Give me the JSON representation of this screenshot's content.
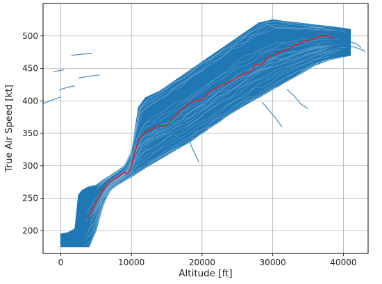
{
  "chart_data": {
    "type": "line",
    "title": "",
    "xlabel": "Altitude [ft]",
    "ylabel": "True Air Speed [kt]",
    "xlim": [
      -2500,
      43500
    ],
    "ylim": [
      165,
      550
    ],
    "xticks": [
      0,
      10000,
      20000,
      30000,
      40000
    ],
    "yticks": [
      200,
      250,
      300,
      350,
      400,
      450,
      500
    ],
    "grid": true,
    "legend": "none",
    "colors": {
      "ensemble": "#1f77b4",
      "mean": "#d62728",
      "grid": "#b0b0b0",
      "axes": "#000000"
    },
    "envelope": {
      "upper": [
        [
          0,
          195
        ],
        [
          1000,
          197
        ],
        [
          2000,
          203
        ],
        [
          2500,
          255
        ],
        [
          3000,
          262
        ],
        [
          4000,
          268
        ],
        [
          5000,
          270
        ],
        [
          6000,
          278
        ],
        [
          7000,
          285
        ],
        [
          8000,
          292
        ],
        [
          9000,
          300
        ],
        [
          10000,
          320
        ],
        [
          11000,
          390
        ],
        [
          12000,
          405
        ],
        [
          14000,
          415
        ],
        [
          16000,
          430
        ],
        [
          18000,
          445
        ],
        [
          20000,
          460
        ],
        [
          22000,
          475
        ],
        [
          24000,
          490
        ],
        [
          26000,
          505
        ],
        [
          28000,
          520
        ],
        [
          30000,
          525
        ],
        [
          32000,
          522
        ],
        [
          34000,
          520
        ],
        [
          36000,
          517
        ],
        [
          38000,
          515
        ],
        [
          40000,
          512
        ],
        [
          41000,
          510
        ]
      ],
      "lower": [
        [
          0,
          175
        ],
        [
          2000,
          175
        ],
        [
          4000,
          175
        ],
        [
          5000,
          200
        ],
        [
          6000,
          240
        ],
        [
          7000,
          262
        ],
        [
          8000,
          270
        ],
        [
          10000,
          283
        ],
        [
          12000,
          297
        ],
        [
          14000,
          310
        ],
        [
          16000,
          323
        ],
        [
          18000,
          335
        ],
        [
          20000,
          350
        ],
        [
          22000,
          365
        ],
        [
          24000,
          380
        ],
        [
          26000,
          393
        ],
        [
          28000,
          405
        ],
        [
          30000,
          418
        ],
        [
          32000,
          430
        ],
        [
          34000,
          442
        ],
        [
          36000,
          455
        ],
        [
          38000,
          463
        ],
        [
          40000,
          468
        ],
        [
          41000,
          470
        ]
      ]
    },
    "outliers": [
      [
        [
          -2500,
          396
        ],
        [
          -1000,
          402
        ],
        [
          0,
          406
        ]
      ],
      [
        [
          -200,
          417
        ],
        [
          1000,
          421
        ],
        [
          2000,
          423
        ]
      ],
      [
        [
          2500,
          435
        ],
        [
          4000,
          438
        ],
        [
          5500,
          440
        ]
      ],
      [
        [
          1500,
          470
        ],
        [
          3000,
          472
        ],
        [
          4500,
          473
        ]
      ],
      [
        [
          -1000,
          445
        ],
        [
          500,
          448
        ]
      ],
      [
        [
          17000,
          375
        ],
        [
          17500,
          360
        ],
        [
          18000,
          345
        ],
        [
          18500,
          330
        ],
        [
          19000,
          318
        ],
        [
          19600,
          305
        ]
      ],
      [
        [
          15500,
          357
        ],
        [
          16500,
          350
        ],
        [
          17500,
          343
        ]
      ],
      [
        [
          28500,
          398
        ],
        [
          29500,
          385
        ],
        [
          30500,
          372
        ],
        [
          31300,
          360
        ]
      ],
      [
        [
          32000,
          418
        ],
        [
          33000,
          408
        ],
        [
          34000,
          395
        ],
        [
          35000,
          388
        ]
      ],
      [
        [
          39000,
          500
        ],
        [
          40500,
          492
        ],
        [
          41800,
          488
        ],
        [
          42500,
          482
        ]
      ],
      [
        [
          40000,
          485
        ],
        [
          41500,
          483
        ],
        [
          42800,
          478
        ],
        [
          43100,
          475
        ]
      ]
    ],
    "series": [
      {
        "values": [
          [
            4000,
            220
          ],
          [
            5000,
            245
          ],
          [
            6000,
            263
          ],
          [
            7000,
            276
          ],
          [
            8000,
            282
          ],
          [
            9000,
            290
          ],
          [
            9500,
            288
          ],
          [
            10000,
            300
          ],
          [
            10500,
            320
          ],
          [
            11000,
            340
          ],
          [
            12000,
            352
          ],
          [
            13000,
            357
          ],
          [
            14000,
            362
          ],
          [
            15000,
            362
          ],
          [
            16000,
            374
          ],
          [
            17000,
            385
          ],
          [
            18000,
            395
          ],
          [
            19000,
            400
          ],
          [
            20000,
            402
          ],
          [
            21000,
            413
          ],
          [
            22000,
            420
          ],
          [
            23000,
            425
          ],
          [
            24000,
            430
          ],
          [
            25000,
            436
          ],
          [
            26000,
            442
          ],
          [
            27000,
            446
          ],
          [
            27500,
            455
          ],
          [
            28500,
            457
          ],
          [
            29500,
            468
          ],
          [
            30000,
            470
          ],
          [
            31000,
            475
          ],
          [
            32000,
            479
          ],
          [
            33000,
            485
          ],
          [
            34000,
            490
          ],
          [
            35000,
            493
          ],
          [
            36000,
            497
          ],
          [
            37000,
            500
          ],
          [
            38000,
            500
          ],
          [
            38500,
            496
          ]
        ]
      }
    ]
  }
}
